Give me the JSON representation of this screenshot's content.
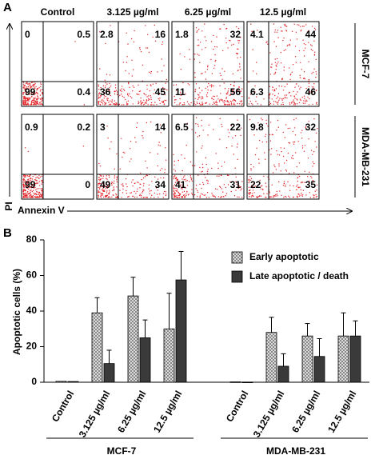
{
  "panel_a": {
    "label": "A",
    "columns": [
      "Control",
      "3.125 µg/ml",
      "6.25 µg/ml",
      "12.5 µg/ml"
    ],
    "rows": [
      {
        "name": "MCF-7",
        "quadrants": [
          [
            0,
            0.5,
            99,
            0.4
          ],
          [
            2.8,
            16,
            36,
            45
          ],
          [
            1.8,
            32,
            11,
            56
          ],
          [
            4.1,
            44,
            6.3,
            46
          ]
        ]
      },
      {
        "name": "MDA-MB-231",
        "quadrants": [
          [
            0.9,
            0.2,
            99,
            0
          ],
          [
            3,
            14,
            49,
            34
          ],
          [
            6.5,
            22,
            41,
            31
          ],
          [
            9.8,
            32,
            22,
            35
          ]
        ]
      }
    ],
    "y_axis_label": "PI",
    "x_axis_label": "Annexin V"
  },
  "chart_data": {
    "type": "bar",
    "panel_label": "B",
    "y_label": "Apoptotic cells (%)",
    "categories": [
      "Control",
      "3.125 µg/ml",
      "6.25 µg/ml",
      "12.5 µg/ml",
      "Control",
      "3.125 µg/ml",
      "6.25 µg/ml",
      "12.5 µg/ml"
    ],
    "groups": [
      "MCF-7",
      "MDA-MB-231"
    ],
    "series": [
      {
        "name": "Early apoptotic",
        "color": "#d9d9d9",
        "hatch": true,
        "values": [
          0.5,
          39,
          48.5,
          30,
          0.2,
          28,
          26,
          26
        ],
        "errors": [
          0,
          8.5,
          10.5,
          20,
          0,
          8.5,
          7,
          13
        ]
      },
      {
        "name": "Late apoptotic / death",
        "color": "#3a3a3a",
        "hatch": false,
        "values": [
          0.4,
          10.5,
          25,
          57.5,
          0.1,
          9,
          14.5,
          26
        ],
        "errors": [
          0,
          7.5,
          10,
          16,
          0,
          7,
          10,
          8.5
        ]
      }
    ],
    "ylim": [
      0,
      80
    ],
    "yticks": [
      0,
      20,
      40,
      60,
      80
    ]
  }
}
